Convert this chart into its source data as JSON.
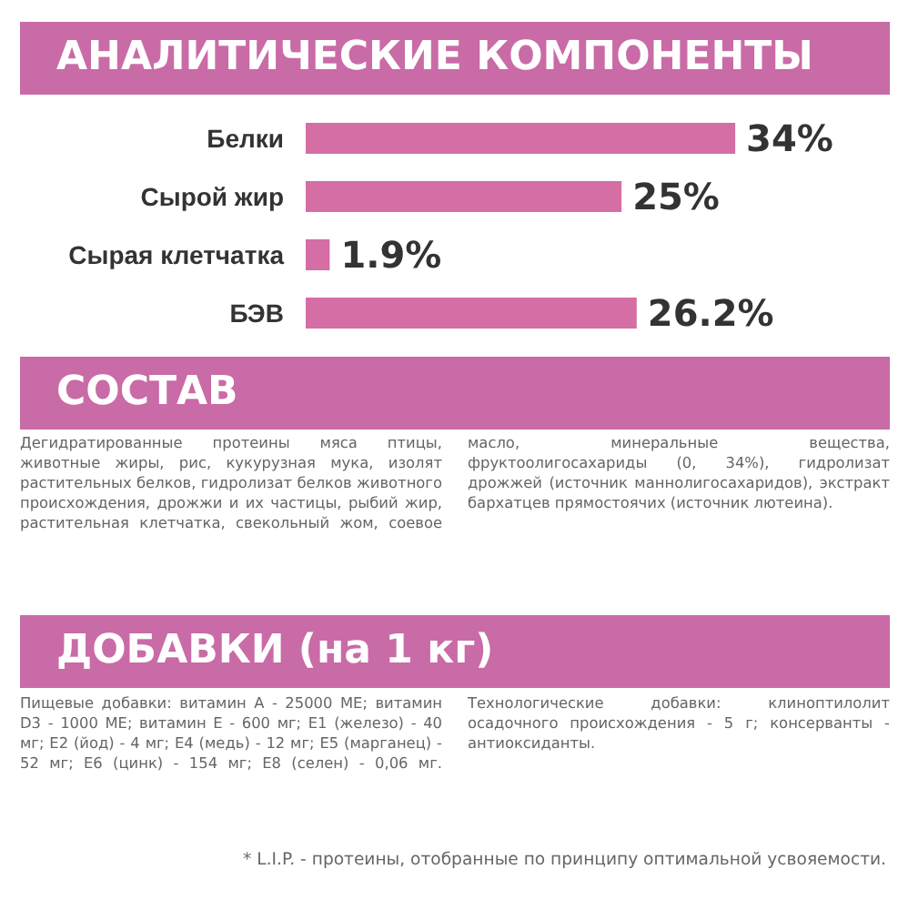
{
  "chart_data": {
    "type": "bar",
    "orientation": "horizontal",
    "title": "АНАЛИТИЧЕСКИЕ КОМПОНЕНТЫ",
    "categories": [
      "Белки",
      "Сырой жир",
      "Сырая клетчатка",
      "БЭВ"
    ],
    "values": [
      34,
      25,
      1.9,
      26.2
    ],
    "value_labels": [
      "34%",
      "25%",
      "1.9%",
      "26.2%"
    ],
    "color": "#d46ea5",
    "annotations": [
      "СОСТАВ",
      "Дегидратированные протеины мяса птицы, животные жиры, рис, кукурузная мука, изолят растительных белков, гидролизат белков животного происхождения, дрожжи и их частицы, рыбий жир, растительная клетчатка, свекольный жом, соевое масло, минеральные вещества, фруктоолигосахариды (0, 34%), гидролизат дрожжей (источник маннолигосахаридов), экстракт бархатцев прямостоячих (источник лютеина).",
      "ДОБАВКИ (на 1 кг)",
      "Пищевые добавки: витамин A - 25000 МЕ; витамин D3 - 1000 МЕ; витамин E - 600 мг; E1 (железо) - 40 мг; E2 (йод) - 4 мг; E4 (медь) - 12 мг; E5 (марганец) - 52 мг; E6 (цинк) - 154 мг; E8 (селен) - 0,06 мг. Технологические добавки: клиноптилолит осадочного происхождения - 5 г; консерванты - антиоксиданты.",
      "* L.I.P. - протеины, отобранные по принципу оптимальной усвояемости."
    ]
  }
}
